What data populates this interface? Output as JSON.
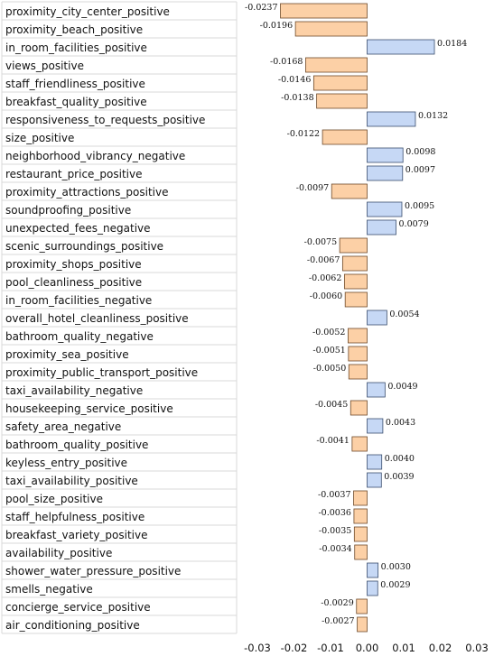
{
  "chart_data": {
    "type": "bar",
    "orientation": "horizontal",
    "categories": [
      "proximity_city_center_positive",
      "proximity_beach_positive",
      "in_room_facilities_positive",
      "views_positive",
      "staff_friendliness_positive",
      "breakfast_quality_positive",
      "responsiveness_to_requests_positive",
      "size_positive",
      "neighborhood_vibrancy_negative",
      "restaurant_price_positive",
      "proximity_attractions_positive",
      "soundproofing_positive",
      "unexpected_fees_negative",
      "scenic_surroundings_positive",
      "proximity_shops_positive",
      "pool_cleanliness_positive",
      "in_room_facilities_negative",
      "overall_hotel_cleanliness_positive",
      "bathroom_quality_negative",
      "proximity_sea_positive",
      "proximity_public_transport_positive",
      "taxi_availability_negative",
      "housekeeping_service_positive",
      "safety_area_negative",
      "bathroom_quality_positive",
      "keyless_entry_positive",
      "taxi_availability_positive",
      "pool_size_positive",
      "staff_helpfulness_positive",
      "breakfast_variety_positive",
      "availability_positive",
      "shower_water_pressure_positive",
      "smells_negative",
      "concierge_service_positive",
      "air_conditioning_positive"
    ],
    "values": [
      -0.0237,
      -0.0196,
      0.0184,
      -0.0168,
      -0.0146,
      -0.0138,
      0.0132,
      -0.0122,
      0.0098,
      0.0097,
      -0.0097,
      0.0095,
      0.0079,
      -0.0075,
      -0.0067,
      -0.0062,
      -0.006,
      0.0054,
      -0.0052,
      -0.0051,
      -0.005,
      0.0049,
      -0.0045,
      0.0043,
      -0.0041,
      0.004,
      0.0039,
      -0.0037,
      -0.0036,
      -0.0035,
      -0.0034,
      0.003,
      0.0029,
      -0.0029,
      -0.0027
    ],
    "value_labels": [
      "-0.0237",
      "-0.0196",
      "0.0184",
      "-0.0168",
      "-0.0146",
      "-0.0138",
      "0.0132",
      "-0.0122",
      "0.0098",
      "0.0097",
      "-0.0097",
      "0.0095",
      "0.0079",
      "-0.0075",
      "-0.0067",
      "-0.0062",
      "-0.0060",
      "0.0054",
      "-0.0052",
      "-0.0051",
      "-0.0050",
      "0.0049",
      "-0.0045",
      "0.0043",
      "-0.0041",
      "0.0040",
      "0.0039",
      "-0.0037",
      "-0.0036",
      "-0.0035",
      "-0.0034",
      "0.0030",
      "0.0029",
      "-0.0029",
      "-0.0027"
    ],
    "x_ticks": [
      "-0.03",
      "-0.02",
      "-0.01",
      "0.00",
      "0.01",
      "0.02",
      "0.03"
    ],
    "x_tick_values": [
      -0.03,
      -0.02,
      -0.01,
      0.0,
      0.01,
      0.02,
      0.03
    ],
    "xlim": [
      -0.03,
      0.03
    ],
    "title": "",
    "xlabel": "",
    "ylabel": "",
    "grid": false,
    "colors": {
      "positive_fill": "#c6d8f5",
      "positive_stroke": "#3a4e6e",
      "negative_fill": "#fcd0a6",
      "negative_stroke": "#6e4a2a"
    }
  }
}
